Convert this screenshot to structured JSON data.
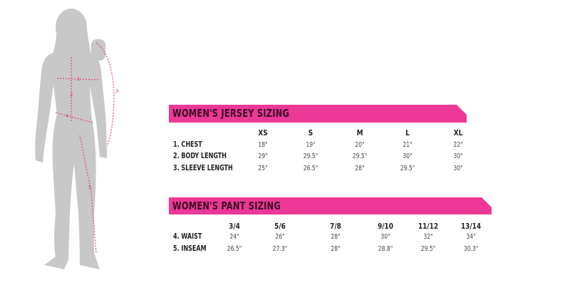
{
  "figure": {
    "measure_markers": [
      "1",
      "2",
      "3",
      "4",
      "5"
    ],
    "silhouette_color": "#c8c8c8",
    "marker_color": "#e0447f"
  },
  "accent_color": "#ec3897",
  "jersey": {
    "title": "WOMEN'S JERSEY SIZING",
    "sizes": [
      "XS",
      "S",
      "M",
      "L",
      "XL"
    ],
    "rows": [
      {
        "label": "1. CHEST",
        "values": [
          "18\"",
          "19\"",
          "20\"",
          "21\"",
          "22\""
        ]
      },
      {
        "label": "2. BODY LENGTH",
        "values": [
          "29\"",
          "29.5\"",
          "29.5\"",
          "30\"",
          "30\""
        ]
      },
      {
        "label": "3. SLEEVE LENGTH",
        "values": [
          "25\"",
          "26.5\"",
          "28\"",
          "29.5\"",
          "30\""
        ]
      }
    ]
  },
  "pant": {
    "title": "WOMEN'S PANT SIZING",
    "sizes": [
      "3/4",
      "5/6",
      "7/8",
      "9/10",
      "11/12",
      "13/14"
    ],
    "rows": [
      {
        "label": "4. WAIST",
        "values": [
          "24\"",
          "26\"",
          "28\"",
          "30\"",
          "32\"",
          "34\""
        ]
      },
      {
        "label": "5. INSEAM",
        "values": [
          "26.5\"",
          "27.3\"",
          "28\"",
          "28.8\"",
          "29.5\"",
          "30.3\""
        ]
      }
    ]
  }
}
